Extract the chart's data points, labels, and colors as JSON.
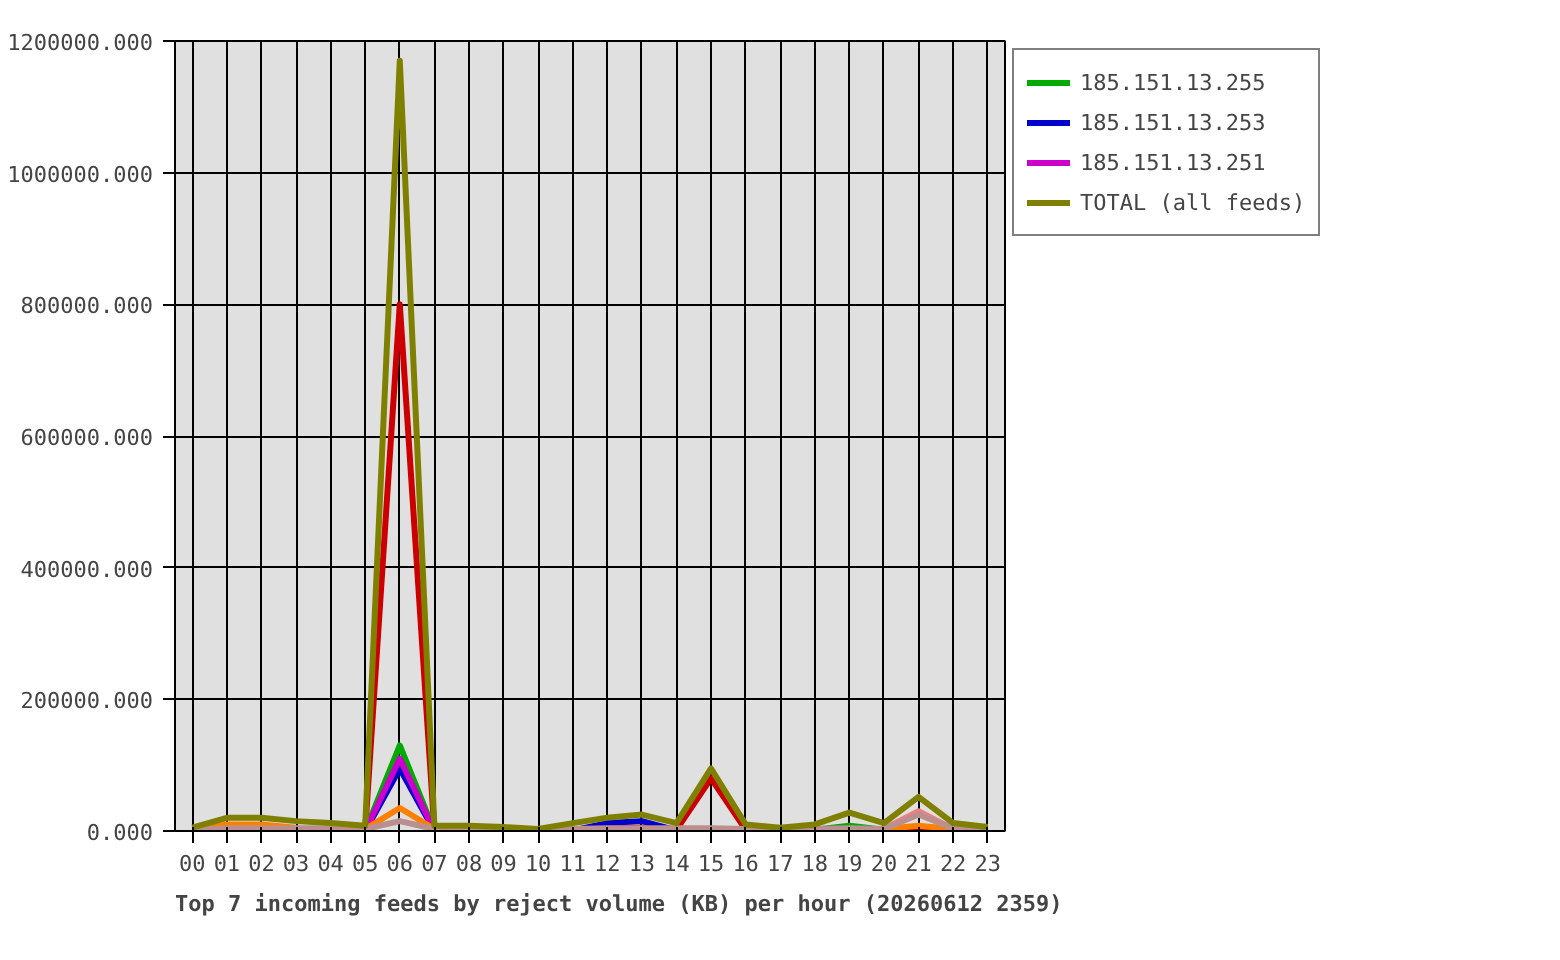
{
  "chart_data": {
    "type": "line",
    "title": "Top 7 incoming feeds by reject volume (KB) per hour (20260612 2359)",
    "categories": [
      "00",
      "01",
      "02",
      "03",
      "04",
      "05",
      "06",
      "07",
      "08",
      "09",
      "10",
      "11",
      "12",
      "13",
      "14",
      "15",
      "16",
      "17",
      "18",
      "19",
      "20",
      "21",
      "22",
      "23"
    ],
    "ylim": [
      0,
      1200000
    ],
    "yticks": [
      {
        "value": 0,
        "label": "0.000"
      },
      {
        "value": 200000,
        "label": "200000.000"
      },
      {
        "value": 400000,
        "label": "400000.000"
      },
      {
        "value": 600000,
        "label": "600000.000"
      },
      {
        "value": 800000,
        "label": "800000.000"
      },
      {
        "value": 1000000,
        "label": "1000000.000"
      },
      {
        "value": 1200000,
        "label": "1200000.000"
      }
    ],
    "grid": true,
    "legend": "top right",
    "series": [
      {
        "color": "#cc0000",
        "values": [
          1000,
          2000,
          2000,
          2000,
          2000,
          1000,
          800000,
          1000,
          1000,
          1000,
          1000,
          2000,
          5000,
          5000,
          2000,
          80000,
          2000,
          1000,
          1000,
          3000,
          2000,
          3000,
          2000,
          1000
        ]
      },
      {
        "name": "185.151.13.255",
        "color": "#00aa00",
        "values": [
          null,
          null,
          null,
          null,
          null,
          0,
          130000,
          0,
          null,
          null,
          null,
          null,
          null,
          null,
          null,
          null,
          null,
          null,
          2000,
          8000,
          2000,
          null,
          null,
          null
        ]
      },
      {
        "name": "185.151.13.253",
        "color": "#0000cc",
        "values": [
          null,
          null,
          null,
          null,
          null,
          0,
          95000,
          0,
          null,
          null,
          null,
          1000,
          12000,
          15000,
          1000,
          null,
          null,
          null,
          null,
          null,
          null,
          null,
          null,
          null
        ]
      },
      {
        "name": "185.151.13.251",
        "color": "#cc00cc",
        "values": [
          null,
          null,
          null,
          null,
          null,
          0,
          110000,
          0,
          null,
          null,
          null,
          null,
          null,
          null,
          null,
          null,
          null,
          null,
          null,
          null,
          null,
          null,
          null,
          null
        ]
      },
      {
        "color": "#f08080",
        "values": [
          null,
          null,
          null,
          null,
          null,
          null,
          null,
          null,
          null,
          null,
          null,
          null,
          null,
          null,
          null,
          null,
          null,
          null,
          null,
          null,
          3000,
          30000,
          3000,
          null
        ]
      },
      {
        "color": "#ff8000",
        "values": [
          1000,
          10000,
          10000,
          5000,
          null,
          3000,
          35000,
          3000,
          null,
          null,
          null,
          null,
          null,
          null,
          null,
          null,
          null,
          null,
          null,
          null,
          3000,
          8000,
          3000,
          null
        ]
      },
      {
        "color": "#bc8f8f",
        "values": [
          1000,
          4000,
          4000,
          4000,
          4000,
          3000,
          15000,
          3000,
          3000,
          2000,
          1000,
          3000,
          4000,
          4000,
          4000,
          4000,
          3000,
          2000,
          3000,
          4000,
          3000,
          25000,
          4000,
          2000
        ]
      },
      {
        "name": "TOTAL (all feeds)",
        "color": "#808000",
        "values": [
          5000,
          20000,
          20000,
          15000,
          12000,
          8000,
          1170000,
          8000,
          8000,
          6000,
          3000,
          12000,
          20000,
          25000,
          12000,
          95000,
          10000,
          5000,
          10000,
          28000,
          12000,
          52000,
          12000,
          6000
        ]
      }
    ]
  }
}
